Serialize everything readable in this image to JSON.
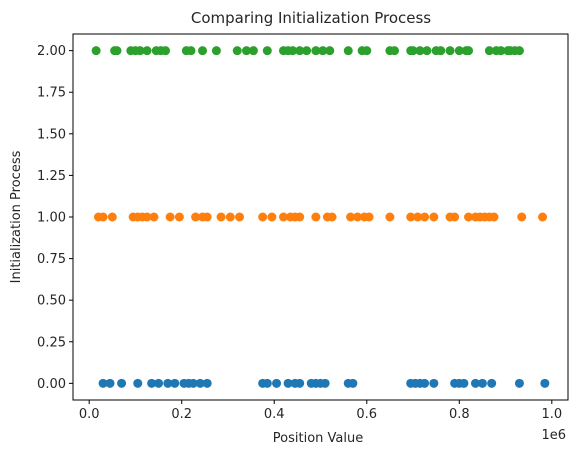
{
  "chart_data": {
    "type": "scatter",
    "title": "Comparing Initialization Process",
    "xlabel": "Position Value",
    "ylabel": "Initialization Process",
    "x_offset_label": "1e6",
    "xlim": [
      -35000,
      1035000
    ],
    "ylim": [
      -0.1,
      2.1
    ],
    "x_ticks": [
      0,
      200000,
      400000,
      600000,
      800000,
      1000000
    ],
    "x_tick_labels": [
      "0.0",
      "0.2",
      "0.4",
      "0.6",
      "0.8",
      "1.0"
    ],
    "y_ticks": [
      0,
      0.25,
      0.5,
      0.75,
      1.0,
      1.25,
      1.5,
      1.75,
      2.0
    ],
    "y_tick_labels": [
      "0.00",
      "0.25",
      "0.50",
      "0.75",
      "1.00",
      "1.25",
      "1.50",
      "1.75",
      "2.00"
    ],
    "grid": false,
    "series": [
      {
        "color": "#1f77b4",
        "y": 0,
        "x": [
          30000,
          45000,
          70000,
          105000,
          135000,
          150000,
          170000,
          185000,
          205000,
          215000,
          225000,
          240000,
          255000,
          375000,
          385000,
          405000,
          430000,
          445000,
          455000,
          480000,
          490000,
          500000,
          510000,
          560000,
          570000,
          695000,
          705000,
          715000,
          725000,
          745000,
          790000,
          800000,
          810000,
          835000,
          850000,
          870000,
          930000,
          985000
        ]
      },
      {
        "color": "#ff7f0e",
        "y": 1,
        "x": [
          20000,
          30000,
          50000,
          95000,
          105000,
          115000,
          125000,
          140000,
          175000,
          195000,
          230000,
          245000,
          255000,
          285000,
          305000,
          325000,
          375000,
          395000,
          420000,
          435000,
          445000,
          455000,
          490000,
          515000,
          525000,
          565000,
          580000,
          595000,
          605000,
          650000,
          695000,
          710000,
          725000,
          745000,
          780000,
          790000,
          820000,
          835000,
          845000,
          855000,
          865000,
          875000,
          935000,
          980000
        ]
      },
      {
        "color": "#2ca02c",
        "y": 2,
        "x": [
          15000,
          55000,
          60000,
          90000,
          100000,
          110000,
          125000,
          145000,
          155000,
          165000,
          210000,
          220000,
          245000,
          275000,
          320000,
          340000,
          355000,
          385000,
          420000,
          430000,
          440000,
          455000,
          470000,
          490000,
          505000,
          520000,
          560000,
          590000,
          600000,
          650000,
          660000,
          695000,
          700000,
          715000,
          730000,
          750000,
          760000,
          780000,
          800000,
          815000,
          820000,
          865000,
          880000,
          890000,
          905000,
          910000,
          920000,
          930000
        ]
      }
    ]
  }
}
